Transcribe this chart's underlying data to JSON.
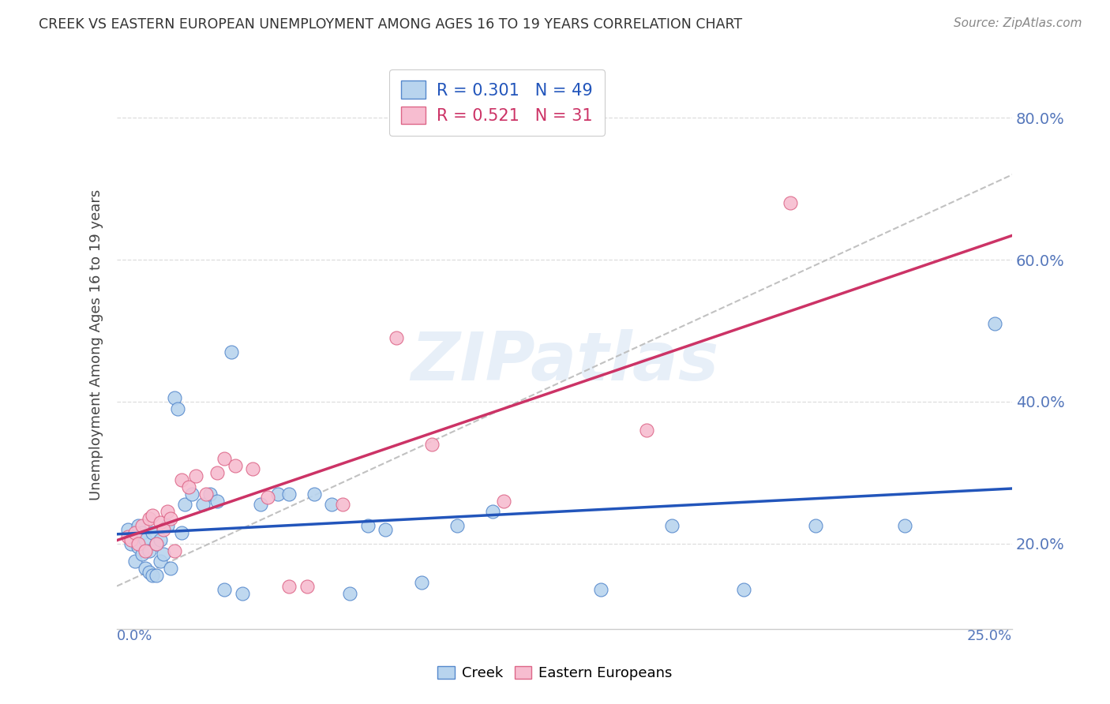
{
  "title": "CREEK VS EASTERN EUROPEAN UNEMPLOYMENT AMONG AGES 16 TO 19 YEARS CORRELATION CHART",
  "source": "Source: ZipAtlas.com",
  "ylabel": "Unemployment Among Ages 16 to 19 years",
  "xlim": [
    0.0,
    0.25
  ],
  "ylim": [
    0.08,
    0.88
  ],
  "creek_R": 0.301,
  "creek_N": 49,
  "ee_R": 0.521,
  "ee_N": 31,
  "creek_fill_color": "#b8d4ee",
  "ee_fill_color": "#f7bdd0",
  "creek_edge_color": "#5588cc",
  "ee_edge_color": "#dd6688",
  "creek_line_color": "#2255bb",
  "ee_line_color": "#cc3366",
  "ref_line_color": "#bbbbbb",
  "watermark": "ZIPatlas",
  "creek_x": [
    0.003,
    0.004,
    0.005,
    0.005,
    0.006,
    0.006,
    0.007,
    0.007,
    0.008,
    0.008,
    0.009,
    0.009,
    0.01,
    0.01,
    0.011,
    0.011,
    0.012,
    0.012,
    0.013,
    0.014,
    0.015,
    0.016,
    0.017,
    0.018,
    0.019,
    0.021,
    0.024,
    0.026,
    0.028,
    0.03,
    0.032,
    0.035,
    0.04,
    0.045,
    0.048,
    0.055,
    0.06,
    0.065,
    0.07,
    0.075,
    0.085,
    0.095,
    0.105,
    0.135,
    0.155,
    0.175,
    0.195,
    0.22,
    0.245
  ],
  "creek_y": [
    0.22,
    0.2,
    0.21,
    0.175,
    0.225,
    0.195,
    0.215,
    0.185,
    0.205,
    0.165,
    0.19,
    0.16,
    0.215,
    0.155,
    0.2,
    0.155,
    0.205,
    0.175,
    0.185,
    0.225,
    0.165,
    0.405,
    0.39,
    0.215,
    0.255,
    0.27,
    0.255,
    0.27,
    0.26,
    0.135,
    0.47,
    0.13,
    0.255,
    0.27,
    0.27,
    0.27,
    0.255,
    0.13,
    0.225,
    0.22,
    0.145,
    0.225,
    0.245,
    0.135,
    0.225,
    0.135,
    0.225,
    0.225,
    0.51
  ],
  "ee_x": [
    0.003,
    0.004,
    0.005,
    0.006,
    0.007,
    0.008,
    0.009,
    0.01,
    0.011,
    0.012,
    0.013,
    0.014,
    0.015,
    0.016,
    0.018,
    0.02,
    0.022,
    0.025,
    0.028,
    0.03,
    0.033,
    0.038,
    0.042,
    0.048,
    0.053,
    0.063,
    0.078,
    0.088,
    0.108,
    0.148,
    0.188
  ],
  "ee_y": [
    0.21,
    0.205,
    0.215,
    0.2,
    0.225,
    0.19,
    0.235,
    0.24,
    0.2,
    0.23,
    0.22,
    0.245,
    0.235,
    0.19,
    0.29,
    0.28,
    0.295,
    0.27,
    0.3,
    0.32,
    0.31,
    0.305,
    0.265,
    0.14,
    0.14,
    0.255,
    0.49,
    0.34,
    0.26,
    0.36,
    0.68
  ],
  "ytick_vals": [
    0.2,
    0.4,
    0.6,
    0.8
  ],
  "ytick_labels": [
    "20.0%",
    "40.0%",
    "60.0%",
    "80.0%"
  ],
  "ylabel_color": "#5577bb",
  "background_color": "#ffffff",
  "grid_color": "#dddddd",
  "title_color": "#333333",
  "source_color": "#888888"
}
